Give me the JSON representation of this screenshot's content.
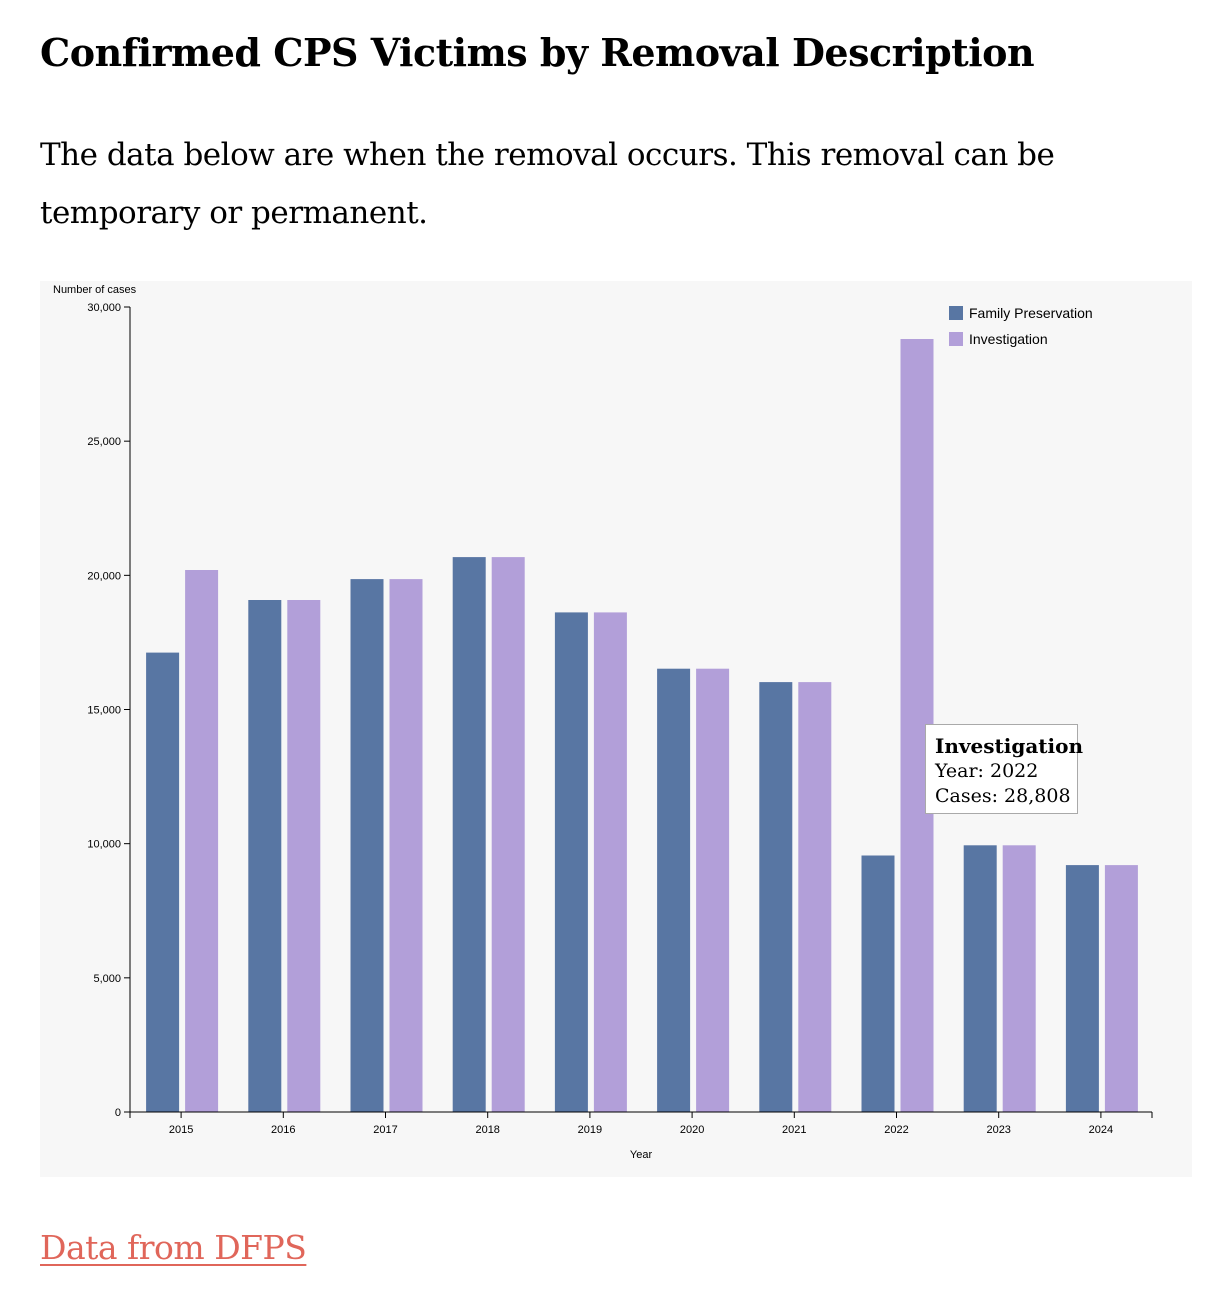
{
  "page": {
    "title": "Confirmed CPS Victims by Removal Description",
    "subtitle": "The data below are when the removal occurs. This removal can be temporary or permanent.",
    "source_link": "Data from DFPS"
  },
  "tooltip": {
    "series": "Investigation",
    "year_label": "Year: 2022",
    "cases_label": "Cases: 28,808"
  },
  "chart_data": {
    "type": "bar",
    "title": "",
    "xlabel": "Year",
    "ylabel": "Number of cases",
    "ylim": [
      0,
      30000
    ],
    "yticks": [
      0,
      5000,
      10000,
      15000,
      20000,
      25000,
      30000
    ],
    "ytick_labels": [
      "0",
      "5,000",
      "10,000",
      "15,000",
      "20,000",
      "25,000",
      "30,000"
    ],
    "categories": [
      "2015",
      "2016",
      "2017",
      "2018",
      "2019",
      "2020",
      "2021",
      "2022",
      "2023",
      "2024"
    ],
    "series": [
      {
        "name": "Family Preservation",
        "color": "#5876a3",
        "values": [
          17120,
          19080,
          19860,
          20680,
          18620,
          16520,
          16020,
          9560,
          9940,
          9200
        ]
      },
      {
        "name": "Investigation",
        "color": "#b29fd9",
        "values": [
          20200,
          19080,
          19860,
          20680,
          18620,
          16520,
          16020,
          28808,
          9940,
          9200
        ]
      }
    ],
    "legend_position": "top-right",
    "grid": false
  }
}
